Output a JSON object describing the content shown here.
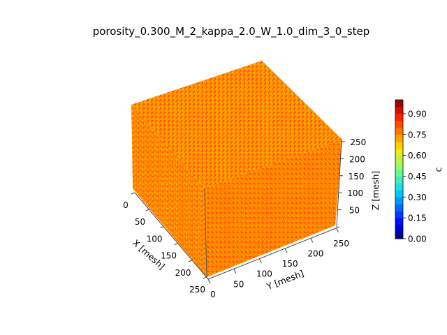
{
  "chart_data": {
    "type": "3d-voxel",
    "title": "porosity_0.300_M_2_kappa_2.0_W_1.0_dim_3_0_step",
    "x_axis": {
      "label": "X [mesh]",
      "ticks": [
        "0",
        "50",
        "100",
        "150",
        "200",
        "250"
      ],
      "range": [
        0,
        256
      ]
    },
    "y_axis": {
      "label": "Y [mesh]",
      "ticks": [
        "0",
        "50",
        "100",
        "150",
        "200",
        "250"
      ],
      "range": [
        0,
        256
      ]
    },
    "z_axis": {
      "label": "Z [mesh]",
      "ticks": [
        "50",
        "100",
        "150",
        "200",
        "250"
      ],
      "range": [
        0,
        256
      ]
    },
    "colorbar": {
      "label": "c",
      "colormap": "jet",
      "range": [
        0.0,
        1.0
      ],
      "ticks": [
        "0.00",
        "0.15",
        "0.30",
        "0.45",
        "0.60",
        "0.75",
        "0.90"
      ]
    },
    "field_colors": [
      "#ff6a00",
      "#ff8c00",
      "#ffa500",
      "#ff4500",
      "#ffb700",
      "#ff7a10"
    ]
  }
}
